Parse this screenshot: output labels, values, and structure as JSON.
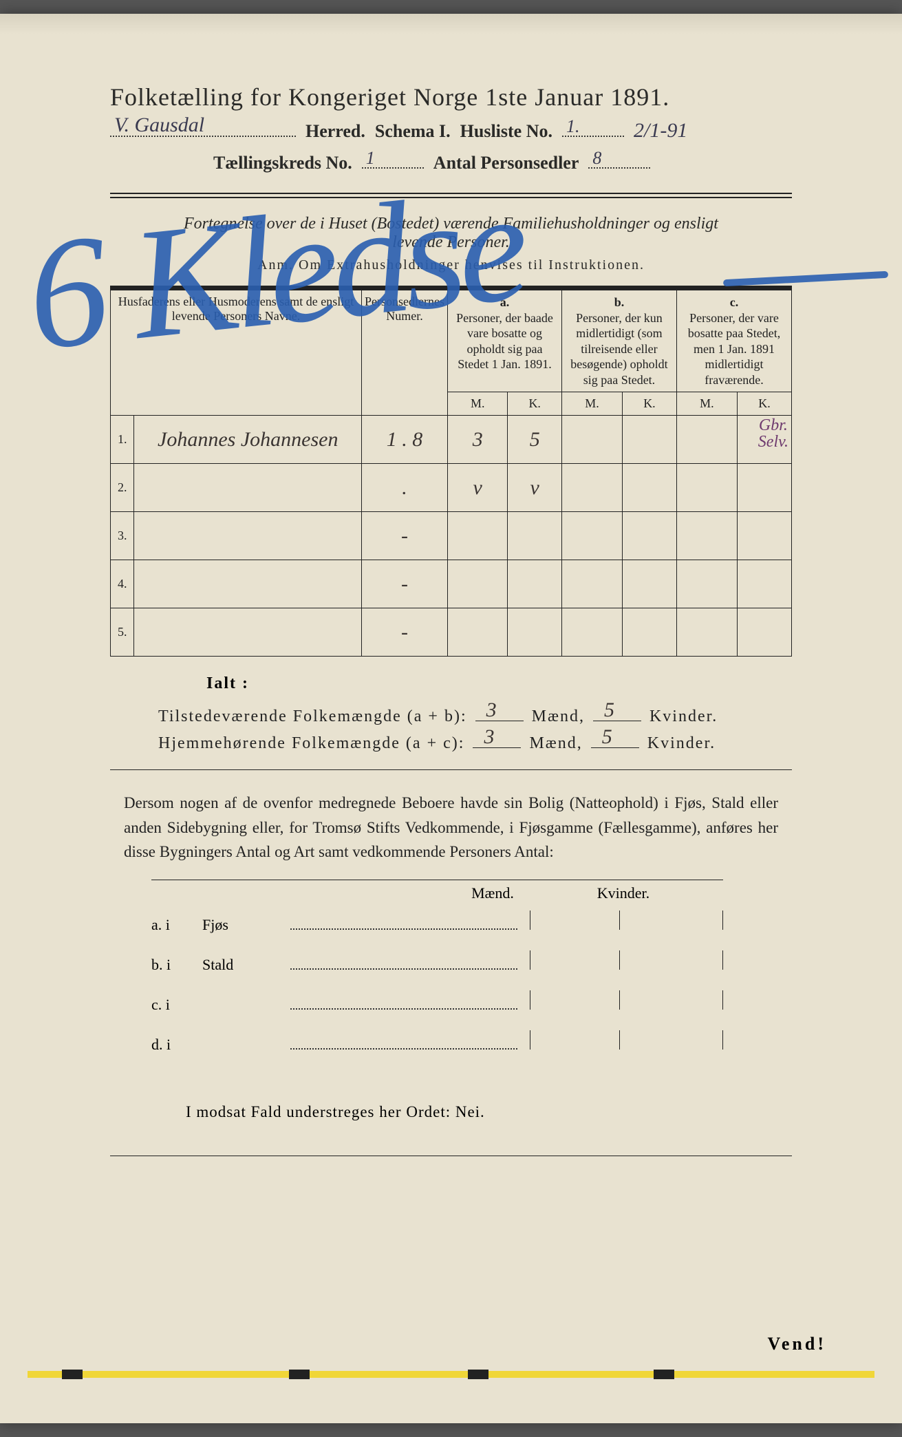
{
  "title": "Folketælling for Kongeriget Norge 1ste Januar 1891.",
  "header": {
    "herred_value": "V. Gausdal",
    "herred_label": "Herred.",
    "schema_label": "Schema I.",
    "husliste_label": "Husliste No.",
    "husliste_value": "1.",
    "side_date": "2/1-91",
    "kreds_label": "Tællingskreds No.",
    "kreds_value": "1",
    "antal_label": "Antal Personsedler",
    "antal_value": "8"
  },
  "fortegnelse_line1": "Fortegnelse over de i Huset (Bostedet) værende Familiehusholdninger og ensligt",
  "fortegnelse_line2": "levende Personer.",
  "anm": "Anm. Om Extrahusholdninger henvises til Instruktionen.",
  "table_headers": {
    "name": "Husfaderens eller Husmoderens samt de ensligt levende Personers Navne.",
    "num": "Personsedlernes Numer.",
    "a_label": "a.",
    "a_text": "Personer, der baade vare bosatte og opholdt sig paa Stedet 1 Jan. 1891.",
    "b_label": "b.",
    "b_text": "Personer, der kun midlertidigt (som tilreisende eller besøgende) opholdt sig paa Stedet.",
    "c_label": "c.",
    "c_text": "Personer, der vare bosatte paa Stedet, men 1 Jan. 1891 midlertidigt fraværende.",
    "m": "M.",
    "k": "K."
  },
  "rows": [
    {
      "n": "1.",
      "name": "Johannes Johannesen",
      "num": "1 . 8",
      "a_m": "3",
      "a_k": "5",
      "b_m": "",
      "b_k": "",
      "c_m": "",
      "c_k": "",
      "c_note": "Gbr.\nSelv."
    },
    {
      "n": "2.",
      "name": "",
      "num": ".",
      "a_m": "v",
      "a_k": "v",
      "b_m": "",
      "b_k": "",
      "c_m": "",
      "c_k": "",
      "c_note": ""
    },
    {
      "n": "3.",
      "name": "",
      "num": "-",
      "a_m": "",
      "a_k": "",
      "b_m": "",
      "b_k": "",
      "c_m": "",
      "c_k": "",
      "c_note": ""
    },
    {
      "n": "4.",
      "name": "",
      "num": "-",
      "a_m": "",
      "a_k": "",
      "b_m": "",
      "b_k": "",
      "c_m": "",
      "c_k": "",
      "c_note": ""
    },
    {
      "n": "5.",
      "name": "",
      "num": "-",
      "a_m": "",
      "a_k": "",
      "b_m": "",
      "b_k": "",
      "c_m": "",
      "c_k": "",
      "c_note": ""
    }
  ],
  "ialt": "Ialt :",
  "totals": {
    "tilstede_label": "Tilstedeværende Folkemængde (a + b):",
    "hjemme_label": "Hjemmehørende Folkemængde (a + c):",
    "maend": "Mænd,",
    "kvinder": "Kvinder.",
    "t_m": "3",
    "t_k": "5",
    "h_m": "3",
    "h_k": "5"
  },
  "paragraph": "Dersom nogen af de ovenfor medregnede Beboere havde sin Bolig (Natteophold) i Fjøs, Stald eller anden Sidebygning eller, for Tromsø Stifts Vedkommende, i Fjøsgamme (Fællesgamme), anføres her disse Bygningers Antal og Art samt vedkommende Personers Antal:",
  "side_table": {
    "head_m": "Mænd.",
    "head_k": "Kvinder.",
    "rows": [
      {
        "lab": "a.  i",
        "typ": "Fjøs"
      },
      {
        "lab": "b.  i",
        "typ": "Stald"
      },
      {
        "lab": "c.  i",
        "typ": ""
      },
      {
        "lab": "d.  i",
        "typ": ""
      }
    ]
  },
  "nei_line": "I modsat Fald understreges her Ordet: Nei.",
  "vend": "Vend!",
  "blue_overwrite": "6 Kledse",
  "colors": {
    "paper": "#e8e2d0",
    "ink": "#2a2a28",
    "blue_pencil": "#2a5fb0",
    "purple_ink": "#6e3a6e",
    "yellow_highlight": "#f0d638"
  }
}
